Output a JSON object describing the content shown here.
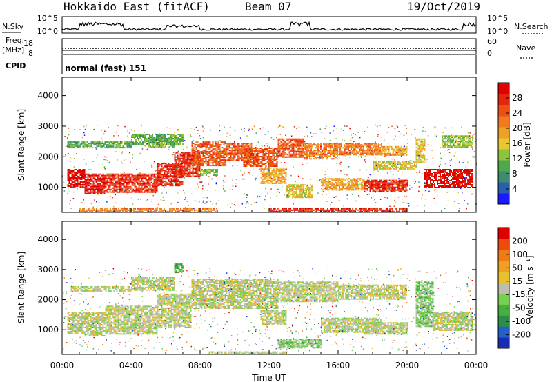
{
  "header": {
    "station": "Hokkaido East (fitACF)",
    "beam": "Beam 07",
    "date": "19/Oct/2019"
  },
  "panels": {
    "nsky": {
      "left_label": "N.Sky",
      "right_label": "N.Search",
      "left_ticks": [
        "10^5",
        "10^0"
      ],
      "right_ticks": [
        "10^5",
        "10^0"
      ]
    },
    "freq": {
      "left_label_line1": "Freq.",
      "left_label_line2": "[MHz]",
      "left_ticks": [
        "18",
        "8"
      ],
      "right_label": "Nave",
      "right_ticks": [
        "60",
        "0"
      ]
    },
    "cpid": {
      "label": "CPID",
      "mode": "normal (fast) 151"
    }
  },
  "chart_data": [
    {
      "type": "heatmap",
      "name": "power",
      "ylabel": "Slant Range [km]",
      "yticks": [
        1000,
        2000,
        3000,
        4000
      ],
      "xticks": [
        "00:00",
        "04:00",
        "08:00",
        "12:00",
        "16:00",
        "20:00",
        "00:00"
      ],
      "xlim_hours": [
        0,
        24
      ],
      "ylim_km": [
        180,
        4600
      ],
      "colorbar": {
        "label": "Power [dB]",
        "ticks": [
          "4",
          "8",
          "12",
          "16",
          "20",
          "24",
          "28"
        ],
        "colors": [
          "#1a1aff",
          "#2a5fb0",
          "#3d8c6e",
          "#4fa84a",
          "#8cc43c",
          "#e8c832",
          "#f0a028",
          "#f07a1e",
          "#ee5014",
          "#e6260c",
          "#e00000"
        ]
      },
      "bands": [
        {
          "t0": 0.3,
          "t1": 1.3,
          "r0": 1000,
          "r1": 1600,
          "level": 10
        },
        {
          "t0": 1.3,
          "t1": 2.5,
          "r0": 800,
          "r1": 1450,
          "level": 10
        },
        {
          "t0": 2.5,
          "t1": 5.5,
          "r0": 850,
          "r1": 1450,
          "level": 9
        },
        {
          "t0": 5.5,
          "t1": 7.0,
          "r0": 1050,
          "r1": 1800,
          "level": 9
        },
        {
          "t0": 6.5,
          "t1": 8.0,
          "r0": 1350,
          "r1": 2150,
          "level": 9
        },
        {
          "t0": 7.5,
          "t1": 9.5,
          "r0": 1700,
          "r1": 2500,
          "level": 8
        },
        {
          "t0": 9.5,
          "t1": 11.0,
          "r0": 1900,
          "r1": 2450,
          "level": 8
        },
        {
          "t0": 10.5,
          "t1": 12.5,
          "r0": 1700,
          "r1": 2300,
          "level": 8
        },
        {
          "t0": 12.5,
          "t1": 14.0,
          "r0": 2000,
          "r1": 2600,
          "level": 8
        },
        {
          "t0": 14.0,
          "t1": 16.0,
          "r0": 1950,
          "r1": 2450,
          "level": 7
        },
        {
          "t0": 16.0,
          "t1": 18.5,
          "r0": 2050,
          "r1": 2450,
          "level": 7
        },
        {
          "t0": 18.5,
          "t1": 20.0,
          "r0": 2050,
          "r1": 2350,
          "level": 6
        },
        {
          "t0": 5.0,
          "t1": 6.5,
          "r0": 2300,
          "r1": 2650,
          "level": 4
        },
        {
          "t0": 0.3,
          "t1": 4.0,
          "r0": 2300,
          "r1": 2500,
          "level": 3
        },
        {
          "t0": 4.0,
          "t1": 7.0,
          "r0": 2400,
          "r1": 2750,
          "level": 3
        },
        {
          "t0": 8.0,
          "t1": 9.0,
          "r0": 1400,
          "r1": 1600,
          "level": 4
        },
        {
          "t0": 11.5,
          "t1": 13.0,
          "r0": 1150,
          "r1": 1650,
          "level": 6
        },
        {
          "t0": 13.0,
          "t1": 14.5,
          "r0": 650,
          "r1": 1100,
          "level": 5
        },
        {
          "t0": 15.0,
          "t1": 17.5,
          "r0": 900,
          "r1": 1300,
          "level": 6
        },
        {
          "t0": 17.5,
          "t1": 20.0,
          "r0": 850,
          "r1": 1250,
          "level": 9
        },
        {
          "t0": 18.0,
          "t1": 20.5,
          "r0": 1600,
          "r1": 1850,
          "level": 5
        },
        {
          "t0": 20.5,
          "t1": 21.0,
          "r0": 1800,
          "r1": 2600,
          "level": 5
        },
        {
          "t0": 21.0,
          "t1": 23.8,
          "r0": 1000,
          "r1": 1600,
          "level": 10
        },
        {
          "t0": 22.0,
          "t1": 23.8,
          "r0": 2300,
          "r1": 2700,
          "level": 4
        },
        {
          "t0": 1.0,
          "t1": 9.0,
          "r0": 200,
          "r1": 320,
          "level": 7
        },
        {
          "t0": 12.0,
          "t1": 20.0,
          "r0": 200,
          "r1": 320,
          "level": 9
        }
      ]
    },
    {
      "type": "heatmap",
      "name": "velocity",
      "ylabel": "Slant Range [km]",
      "yticks": [
        1000,
        2000,
        3000,
        4000
      ],
      "xticks": [
        "00:00",
        "04:00",
        "08:00",
        "12:00",
        "16:00",
        "20:00",
        "00:00"
      ],
      "xlim_hours": [
        0,
        24
      ],
      "ylim_km": [
        180,
        4600
      ],
      "xlabel": "Time UT",
      "colorbar": {
        "label": "Velocity [m s⁻¹]",
        "ticks": [
          "200",
          "100",
          "50",
          "15",
          "-15",
          "-50",
          "-100",
          "-200"
        ],
        "colors": [
          "#1a2cb4",
          "#2060c8",
          "#2e8c4a",
          "#44b040",
          "#78d050",
          "#bebeb0",
          "#e8c030",
          "#f0a020",
          "#f07a14",
          "#ee4a0a",
          "#e00000"
        ]
      },
      "bands": [
        {
          "t0": 0.3,
          "t1": 1.3,
          "r0": 900,
          "r1": 1600,
          "level": 5
        },
        {
          "t0": 1.3,
          "t1": 2.5,
          "r0": 800,
          "r1": 1600,
          "level": 5
        },
        {
          "t0": 2.5,
          "t1": 5.5,
          "r0": 850,
          "r1": 1800,
          "level": 5
        },
        {
          "t0": 5.5,
          "t1": 7.5,
          "r0": 1100,
          "r1": 2200,
          "level": 5
        },
        {
          "t0": 7.5,
          "t1": 12.5,
          "r0": 1700,
          "r1": 2700,
          "level": 5
        },
        {
          "t0": 12.5,
          "t1": 16.0,
          "r0": 1950,
          "r1": 2600,
          "level": 5
        },
        {
          "t0": 16.0,
          "t1": 20.0,
          "r0": 2000,
          "r1": 2500,
          "level": 5
        },
        {
          "t0": 4.0,
          "t1": 6.5,
          "r0": 2300,
          "r1": 2750,
          "level": 5
        },
        {
          "t0": 0.5,
          "t1": 4.0,
          "r0": 2300,
          "r1": 2450,
          "level": 5
        },
        {
          "t0": 11.5,
          "t1": 13.0,
          "r0": 1150,
          "r1": 1650,
          "level": 5
        },
        {
          "t0": 15.0,
          "t1": 18.5,
          "r0": 900,
          "r1": 1400,
          "level": 5
        },
        {
          "t0": 17.5,
          "t1": 20.0,
          "r0": 850,
          "r1": 1250,
          "level": 5
        },
        {
          "t0": 20.5,
          "t1": 21.5,
          "r0": 1100,
          "r1": 2600,
          "level": 4
        },
        {
          "t0": 21.5,
          "t1": 23.8,
          "r0": 1000,
          "r1": 1600,
          "level": 5
        },
        {
          "t0": 12.5,
          "t1": 15.0,
          "r0": 400,
          "r1": 700,
          "level": 4
        },
        {
          "t0": 6.5,
          "t1": 7.0,
          "r0": 2900,
          "r1": 3200,
          "level": 3
        },
        {
          "t0": 8.5,
          "t1": 13.0,
          "r0": 200,
          "r1": 280,
          "level": 5
        }
      ]
    }
  ]
}
